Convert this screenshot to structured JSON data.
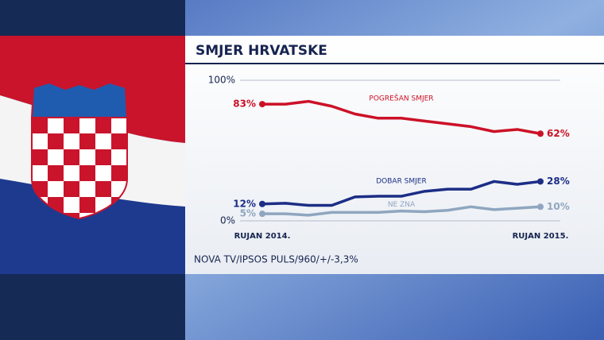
{
  "chart_data": {
    "type": "line",
    "title": "SMJER HRVATSKE",
    "source": "NOVA TV/IPSOS PULS/960/+/-3,3%",
    "categories": [
      "RUJAN 2014.",
      null,
      null,
      null,
      null,
      null,
      null,
      null,
      null,
      null,
      null,
      null,
      "RUJAN 2015."
    ],
    "ylim": [
      0,
      100
    ],
    "yticks": [
      {
        "value": 0,
        "label": "0%"
      },
      {
        "value": 100,
        "label": "100%"
      }
    ],
    "grid": true,
    "series": [
      {
        "name": "POGREŠAN SMJER",
        "color": "#cc1127",
        "values": [
          83,
          83,
          85,
          81.5,
          76,
          73,
          73,
          71,
          69,
          67,
          63.5,
          65,
          62
        ],
        "value_labels": [
          "83%",
          null,
          null,
          null,
          null,
          null,
          null,
          null,
          null,
          null,
          null,
          null,
          "62%"
        ]
      },
      {
        "name": "DOBAR SMJER",
        "color": "#1b2d86",
        "values": [
          12,
          12.5,
          11,
          11,
          17,
          17.5,
          17.5,
          21,
          22.5,
          22.5,
          28,
          26,
          28
        ],
        "value_labels": [
          "12%",
          null,
          null,
          null,
          null,
          null,
          null,
          null,
          null,
          null,
          null,
          null,
          "28%"
        ]
      },
      {
        "name": "NE ZNA",
        "color": "#8fa6c0",
        "values": [
          5,
          5,
          4,
          6,
          6,
          6,
          7,
          6.5,
          7.5,
          10,
          8,
          9,
          10
        ],
        "value_labels": [
          "5%",
          null,
          null,
          null,
          null,
          null,
          null,
          null,
          null,
          null,
          null,
          null,
          "10%"
        ]
      }
    ]
  }
}
